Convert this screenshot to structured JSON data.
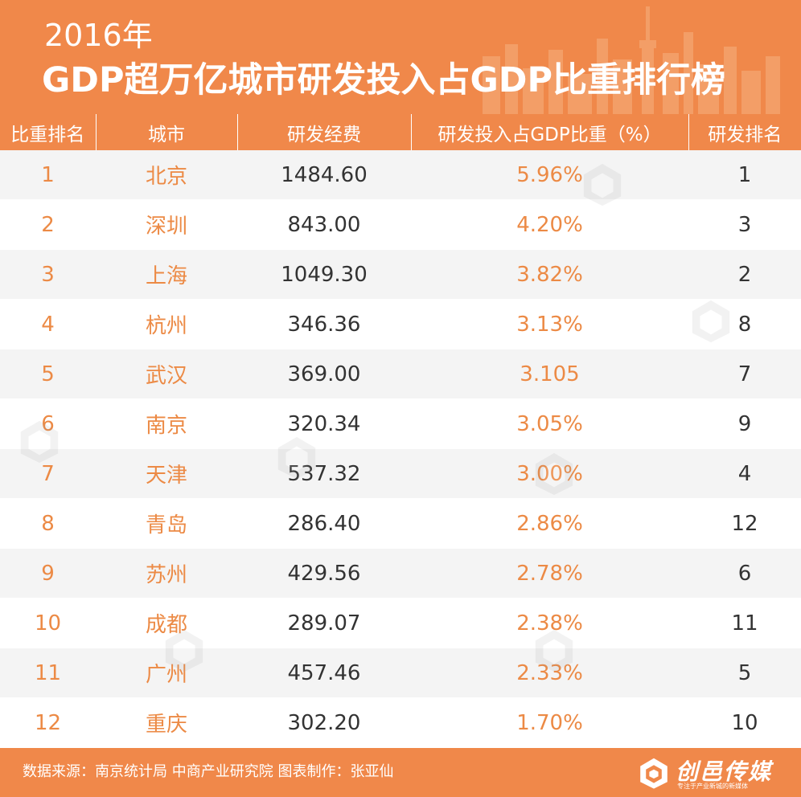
{
  "header": {
    "year": "2016年",
    "title": "GDP超万亿城市研发投入占GDP比重排行榜",
    "bg_color": "#f0884a"
  },
  "chart_data": {
    "type": "table",
    "title": "2016年 GDP超万亿城市研发投入占GDP比重排行榜",
    "columns": [
      "比重排名",
      "城市",
      "研发经费",
      "研发投入占GDP比重（%）",
      "研发排名"
    ],
    "rows": [
      {
        "rank": "1",
        "city": "北京",
        "spend": "1484.60",
        "share": "5.96%",
        "rd_rank": "1"
      },
      {
        "rank": "2",
        "city": "深圳",
        "spend": "843.00",
        "share": "4.20%",
        "rd_rank": "3"
      },
      {
        "rank": "3",
        "city": "上海",
        "spend": "1049.30",
        "share": "3.82%",
        "rd_rank": "2"
      },
      {
        "rank": "4",
        "city": "杭州",
        "spend": "346.36",
        "share": "3.13%",
        "rd_rank": "8"
      },
      {
        "rank": "5",
        "city": "武汉",
        "spend": "369.00",
        "share": "3.105",
        "rd_rank": "7"
      },
      {
        "rank": "6",
        "city": "南京",
        "spend": "320.34",
        "share": "3.05%",
        "rd_rank": "9"
      },
      {
        "rank": "7",
        "city": "天津",
        "spend": "537.32",
        "share": "3.00%",
        "rd_rank": "4"
      },
      {
        "rank": "8",
        "city": "青岛",
        "spend": "286.40",
        "share": "2.86%",
        "rd_rank": "12"
      },
      {
        "rank": "9",
        "city": "苏州",
        "spend": "429.56",
        "share": "2.78%",
        "rd_rank": "6"
      },
      {
        "rank": "10",
        "city": "成都",
        "spend": "289.07",
        "share": "2.38%",
        "rd_rank": "11"
      },
      {
        "rank": "11",
        "city": "广州",
        "spend": "457.46",
        "share": "2.33%",
        "rd_rank": "5"
      },
      {
        "rank": "12",
        "city": "重庆",
        "spend": "302.20",
        "share": "1.70%",
        "rd_rank": "10"
      }
    ],
    "colors": {
      "accent": "#f0884a",
      "text_accent": "#ec8a45",
      "text_dark": "#333333",
      "row_alt": "#f4f4f4"
    }
  },
  "footer": {
    "source": "数据来源：南京统计局 中商产业研究院  图表制作：张亚仙",
    "logo_text": "创邑传媒",
    "logo_sub": "专注于产业新城的新媒体"
  }
}
